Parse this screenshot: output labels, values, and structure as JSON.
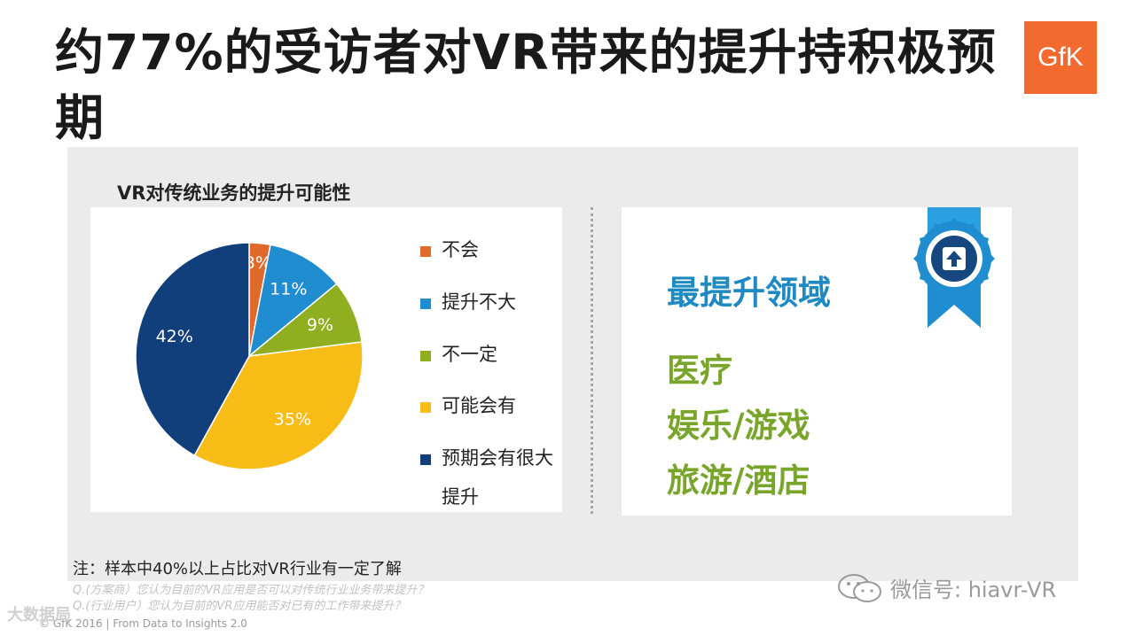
{
  "title": "约77%的受访者对VR带来的提升持积极预期",
  "logo_text": "GfK",
  "chart_title": "VR对传统业务的提升可能性",
  "chart_data": {
    "type": "pie",
    "title": "VR对传统业务的提升可能性",
    "start_angle_deg": 0,
    "direction": "clockwise",
    "slices": [
      {
        "label": "不会",
        "value": 3,
        "display": "3%",
        "color": "#e06a2c",
        "label_color": "#ffffff"
      },
      {
        "label": "提升不大",
        "value": 11,
        "display": "11%",
        "color": "#1f8dd0",
        "label_color": "#ffffff"
      },
      {
        "label": "不一定",
        "value": 9,
        "display": "9%",
        "color": "#8fae20",
        "label_color": "#ffffff"
      },
      {
        "label": "可能会有",
        "value": 35,
        "display": "35%",
        "color": "#f7bc16",
        "label_color": "#ffffff"
      },
      {
        "label": "预期会有很大提升",
        "value": 42,
        "display": "42%",
        "color": "#113f7c",
        "label_color": "#ffffff"
      }
    ],
    "legend_position": "right"
  },
  "legend": [
    {
      "label": "不会",
      "color": "#e06a2c"
    },
    {
      "label": "提升不大",
      "color": "#1f8dd0"
    },
    {
      "label": "不一定",
      "color": "#8fae20"
    },
    {
      "label": "可能会有",
      "color": "#f7bc16"
    },
    {
      "label": "预期会有很大提升",
      "color": "#113f7c"
    }
  ],
  "areas": {
    "heading": "最提升领域",
    "items": [
      "医疗",
      "娱乐/游戏",
      "旅游/酒店"
    ]
  },
  "badge_icon": "upward-arrow-ribbon-badge-icon",
  "note": "注：样本中40%以上占比对VR行业有一定了解",
  "questions": [
    "Q.(方案商）您认为目前的VR应用是否可以对传统行业业务带来提升？",
    "Q.(行业用户）您认为目前的VR应用能否对已有的工作带来提升？"
  ],
  "copyright": "© GfK 2016 | From Data to Insights 2.0",
  "watermark_left": "大数据局",
  "wechat_label": "微信号: hiavr-VR",
  "colors": {
    "panel": "#ebebeb",
    "heading_blue": "#1f8ac2",
    "green": "#7aa52b",
    "gfk_orange": "#f26a2e"
  }
}
